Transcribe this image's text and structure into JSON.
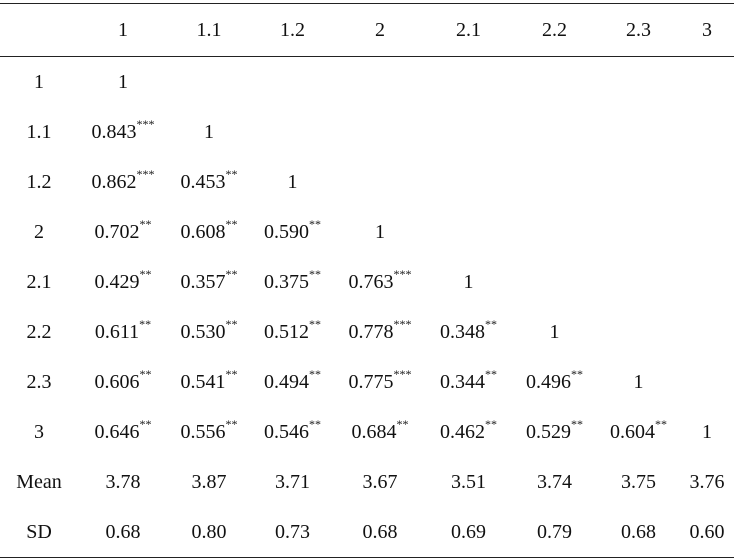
{
  "table": {
    "header": [
      "1",
      "1.1",
      "1.2",
      "2",
      "2.1",
      "2.2",
      "2.3",
      "3"
    ],
    "rows": [
      {
        "label": "1",
        "cells": [
          {
            "v": "1"
          }
        ]
      },
      {
        "label": "1.1",
        "cells": [
          {
            "v": "0.843",
            "sig": "***"
          },
          {
            "v": "1"
          }
        ]
      },
      {
        "label": "1.2",
        "cells": [
          {
            "v": "0.862",
            "sig": "***"
          },
          {
            "v": "0.453",
            "sig": "**"
          },
          {
            "v": "1"
          }
        ]
      },
      {
        "label": "2",
        "cells": [
          {
            "v": "0.702",
            "sig": "**"
          },
          {
            "v": "0.608",
            "sig": "**"
          },
          {
            "v": "0.590",
            "sig": "**"
          },
          {
            "v": "1"
          }
        ]
      },
      {
        "label": "2.1",
        "cells": [
          {
            "v": "0.429",
            "sig": "**"
          },
          {
            "v": "0.357",
            "sig": "**"
          },
          {
            "v": "0.375",
            "sig": "**"
          },
          {
            "v": "0.763",
            "sig": "***"
          },
          {
            "v": "1"
          }
        ]
      },
      {
        "label": "2.2",
        "cells": [
          {
            "v": "0.611",
            "sig": "**"
          },
          {
            "v": "0.530",
            "sig": "**"
          },
          {
            "v": "0.512",
            "sig": "**"
          },
          {
            "v": "0.778",
            "sig": "***"
          },
          {
            "v": "0.348",
            "sig": "**"
          },
          {
            "v": "1"
          }
        ]
      },
      {
        "label": "2.3",
        "cells": [
          {
            "v": "0.606",
            "sig": "**"
          },
          {
            "v": "0.541",
            "sig": "**"
          },
          {
            "v": "0.494",
            "sig": "**"
          },
          {
            "v": "0.775",
            "sig": "***"
          },
          {
            "v": "0.344",
            "sig": "**"
          },
          {
            "v": "0.496",
            "sig": "**"
          },
          {
            "v": "1"
          }
        ]
      },
      {
        "label": "3",
        "cells": [
          {
            "v": "0.646",
            "sig": "**"
          },
          {
            "v": "0.556",
            "sig": "**"
          },
          {
            "v": "0.546",
            "sig": "**"
          },
          {
            "v": "0.684",
            "sig": "**"
          },
          {
            "v": "0.462",
            "sig": "**"
          },
          {
            "v": "0.529",
            "sig": "**"
          },
          {
            "v": "0.604",
            "sig": "**"
          },
          {
            "v": "1"
          }
        ]
      },
      {
        "label": "Mean",
        "cells": [
          {
            "v": "3.78"
          },
          {
            "v": "3.87"
          },
          {
            "v": "3.71"
          },
          {
            "v": "3.67"
          },
          {
            "v": "3.51"
          },
          {
            "v": "3.74"
          },
          {
            "v": "3.75"
          },
          {
            "v": "3.76"
          }
        ]
      },
      {
        "label": "SD",
        "cells": [
          {
            "v": "0.68"
          },
          {
            "v": "0.80"
          },
          {
            "v": "0.73"
          },
          {
            "v": "0.68"
          },
          {
            "v": "0.69"
          },
          {
            "v": "0.79"
          },
          {
            "v": "0.68"
          },
          {
            "v": "0.60"
          }
        ]
      }
    ]
  }
}
